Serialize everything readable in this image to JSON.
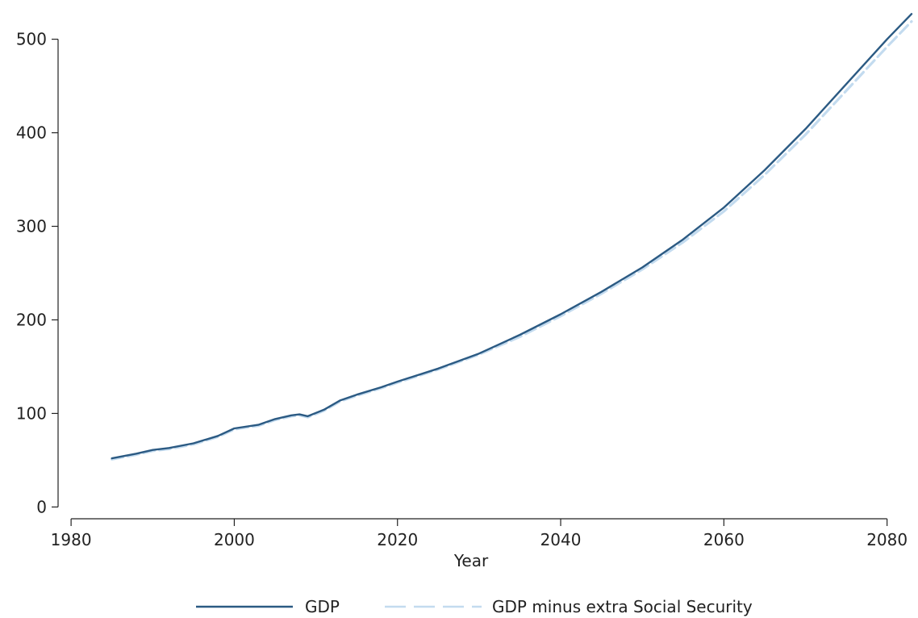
{
  "chart_data": {
    "type": "line",
    "title": "",
    "xlabel": "Year",
    "ylabel": "",
    "xlim": [
      1979,
      2083
    ],
    "ylim": [
      -10,
      535
    ],
    "xticks": [
      1980,
      2000,
      2020,
      2040,
      2060,
      2080
    ],
    "yticks": [
      0,
      100,
      200,
      300,
      400,
      500
    ],
    "legend": "bottom",
    "grid": false,
    "series": [
      {
        "name": "GDP",
        "color": "#2b5a83",
        "style": "solid",
        "x": [
          1985,
          1988,
          1990,
          1992,
          1995,
          1998,
          2000,
          2003,
          2005,
          2007,
          2008,
          2009,
          2011,
          2013,
          2015,
          2018,
          2020,
          2025,
          2030,
          2035,
          2040,
          2045,
          2050,
          2055,
          2060,
          2065,
          2070,
          2075,
          2080,
          2083
        ],
        "y": [
          52,
          57,
          61,
          63,
          68,
          76,
          84,
          88,
          94,
          98,
          99,
          97,
          104,
          114,
          120,
          128,
          134,
          148,
          164,
          184,
          206,
          230,
          256,
          286,
          320,
          360,
          404,
          452,
          500,
          527
        ]
      },
      {
        "name": "GDP minus extra Social Security",
        "color": "#c3dbef",
        "style": "dashed",
        "x": [
          1985,
          1988,
          1990,
          1992,
          1995,
          1998,
          2000,
          2003,
          2005,
          2007,
          2008,
          2009,
          2011,
          2013,
          2015,
          2018,
          2020,
          2025,
          2030,
          2035,
          2040,
          2045,
          2050,
          2055,
          2060,
          2065,
          2070,
          2075,
          2080,
          2083
        ],
        "y": [
          51,
          56,
          60,
          62,
          67,
          75,
          83,
          87,
          93,
          97,
          98,
          96,
          103,
          113,
          119,
          127,
          133,
          147,
          163,
          182,
          204,
          228,
          254,
          283,
          316,
          355,
          398,
          445,
          492,
          519
        ]
      }
    ]
  }
}
